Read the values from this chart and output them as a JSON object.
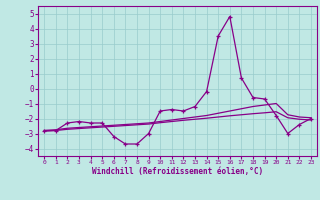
{
  "x": [
    0,
    1,
    2,
    3,
    4,
    5,
    6,
    7,
    8,
    9,
    10,
    11,
    12,
    13,
    14,
    15,
    16,
    17,
    18,
    19,
    20,
    21,
    22,
    23
  ],
  "line_main": [
    -2.8,
    -2.8,
    -2.3,
    -2.2,
    -2.3,
    -2.3,
    -3.2,
    -3.7,
    -3.7,
    -3.0,
    -1.5,
    -1.4,
    -1.5,
    -1.2,
    -0.2,
    3.5,
    4.8,
    0.7,
    -0.6,
    -0.7,
    -1.8,
    -3.0,
    -2.4,
    -2.0
  ],
  "trend_upper": [
    -2.8,
    -2.75,
    -2.65,
    -2.6,
    -2.55,
    -2.5,
    -2.45,
    -2.4,
    -2.35,
    -2.3,
    -2.2,
    -2.1,
    -2.0,
    -1.9,
    -1.8,
    -1.65,
    -1.5,
    -1.35,
    -1.2,
    -1.1,
    -1.0,
    -1.75,
    -1.9,
    -1.95
  ],
  "trend_lower": [
    -2.85,
    -2.8,
    -2.72,
    -2.67,
    -2.62,
    -2.57,
    -2.52,
    -2.47,
    -2.42,
    -2.37,
    -2.28,
    -2.2,
    -2.12,
    -2.05,
    -1.98,
    -1.9,
    -1.82,
    -1.75,
    -1.68,
    -1.62,
    -1.55,
    -1.95,
    -2.05,
    -2.1
  ],
  "bg_color": "#c0e8e4",
  "line_color": "#880088",
  "grid_color": "#99cccc",
  "xlabel": "Windchill (Refroidissement éolien,°C)",
  "ylim": [
    -4.5,
    5.5
  ],
  "xlim": [
    -0.5,
    23.5
  ],
  "yticks": [
    -4,
    -3,
    -2,
    -1,
    0,
    1,
    2,
    3,
    4,
    5
  ],
  "xticks": [
    0,
    1,
    2,
    3,
    4,
    5,
    6,
    7,
    8,
    9,
    10,
    11,
    12,
    13,
    14,
    15,
    16,
    17,
    18,
    19,
    20,
    21,
    22,
    23
  ]
}
